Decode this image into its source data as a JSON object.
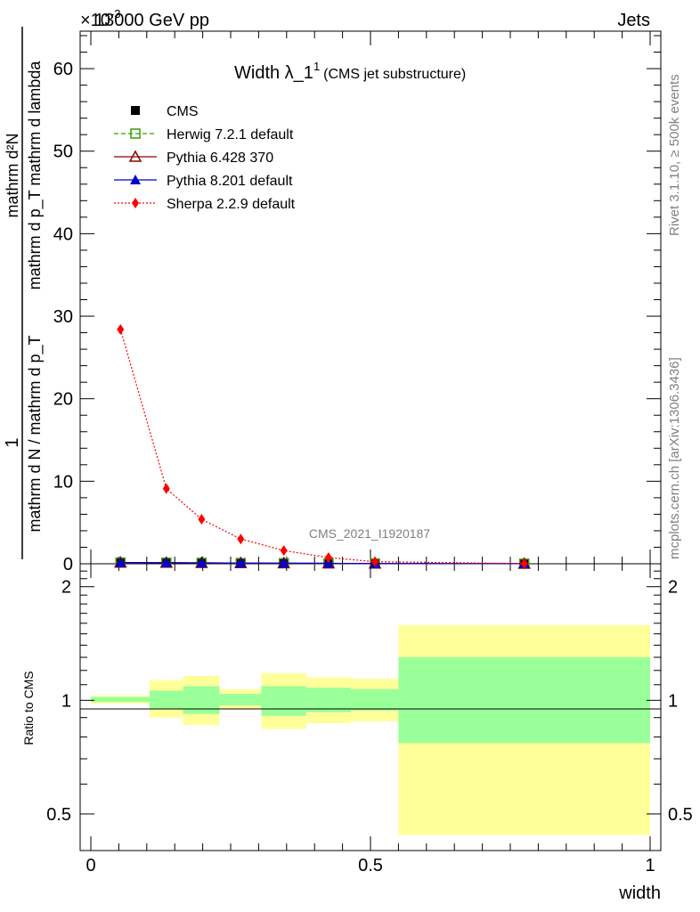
{
  "header": {
    "left": "13000 GeV pp",
    "right": "Jets",
    "exponent": "×10",
    "exponent_power": "-3"
  },
  "side_labels": {
    "rivet": "Rivet 3.1.10, ≥ 500k events",
    "mcplots": "mcplots.cern.ch [arXiv:1306.3436]"
  },
  "watermark": "CMS_2021_I1920187",
  "legend": {
    "title_main": "Width λ_1",
    "title_sup": "1",
    "title_sub": "(CMS jet substructure)",
    "entries": [
      "CMS",
      "Herwig 7.2.1 default",
      "Pythia 6.428 370",
      "Pythia 8.201 default",
      "Sherpa 2.2.9 default"
    ]
  },
  "colors": {
    "cms": "#000000",
    "herwig": "#3a9a0a",
    "pythia6": "#8b0000",
    "pythia8": "#0000cc",
    "sherpa": "#ff0000",
    "band_outer": "#ffff99",
    "band_inner": "#99ff99"
  },
  "chart_data": {
    "type": "line",
    "ylabel_main_num": "mathrm d²N",
    "ylabel_main_den": "mathrm d p_T mathrm d lambda",
    "ylabel_norm_num": "1",
    "ylabel_norm_den": "mathrm d N / mathrm d p_T",
    "ylabel_ratio": "Ratio to CMS",
    "xlabel": "width",
    "xlim": [
      0,
      1
    ],
    "ylim_main": [
      0,
      0.064
    ],
    "ylim_ratio": [
      0.4,
      2.3
    ],
    "x_ticks": [
      "0",
      "0.5",
      "1"
    ],
    "y_ticks_main": [
      "0",
      "10",
      "20",
      "30",
      "40",
      "50",
      "60"
    ],
    "y_ticks_ratio": [
      "0.5",
      "1",
      "2"
    ],
    "bins": [
      [
        0,
        0.105
      ],
      [
        0.105,
        0.165
      ],
      [
        0.165,
        0.23
      ],
      [
        0.23,
        0.305
      ],
      [
        0.305,
        0.385
      ],
      [
        0.385,
        0.465
      ],
      [
        0.465,
        0.55
      ],
      [
        0.55,
        1.0
      ]
    ],
    "x": [
      0.053,
      0.135,
      0.198,
      0.268,
      0.345,
      0.425,
      0.508,
      0.775
    ],
    "series": [
      {
        "name": "CMS",
        "values": [
          0.00015,
          0.00013,
          0.00011,
          9e-05,
          7e-05,
          5e-05,
          3e-05,
          1e-05
        ]
      },
      {
        "name": "Herwig 7.2.1 default",
        "values": [
          0.00015,
          0.00013,
          0.00011,
          9e-05,
          7e-05,
          5e-05,
          3e-05,
          1e-05
        ]
      },
      {
        "name": "Pythia 6.428 370",
        "values": [
          0.00015,
          0.00013,
          0.00011,
          9e-05,
          7e-05,
          5e-05,
          3e-05,
          1e-05
        ]
      },
      {
        "name": "Pythia 8.201 default",
        "values": [
          0.00015,
          0.00013,
          0.00011,
          9e-05,
          7e-05,
          5e-05,
          3e-05,
          1e-05
        ]
      },
      {
        "name": "Sherpa 2.2.9 default",
        "values": [
          0.0284,
          0.0091,
          0.0054,
          0.003,
          0.0016,
          0.00075,
          0.00025,
          2e-05
        ]
      }
    ],
    "ratio_band_outer": [
      [
        0.98,
        1.03
      ],
      [
        0.9,
        1.13
      ],
      [
        0.86,
        1.16
      ],
      [
        0.95,
        1.07
      ],
      [
        0.84,
        1.18
      ],
      [
        0.87,
        1.15
      ],
      [
        0.88,
        1.14
      ],
      [
        0.44,
        1.58
      ]
    ],
    "ratio_band_inner": [
      [
        0.99,
        1.02
      ],
      [
        0.95,
        1.06
      ],
      [
        0.92,
        1.09
      ],
      [
        0.97,
        1.04
      ],
      [
        0.91,
        1.09
      ],
      [
        0.93,
        1.08
      ],
      [
        0.94,
        1.07
      ],
      [
        0.77,
        1.3
      ]
    ]
  }
}
